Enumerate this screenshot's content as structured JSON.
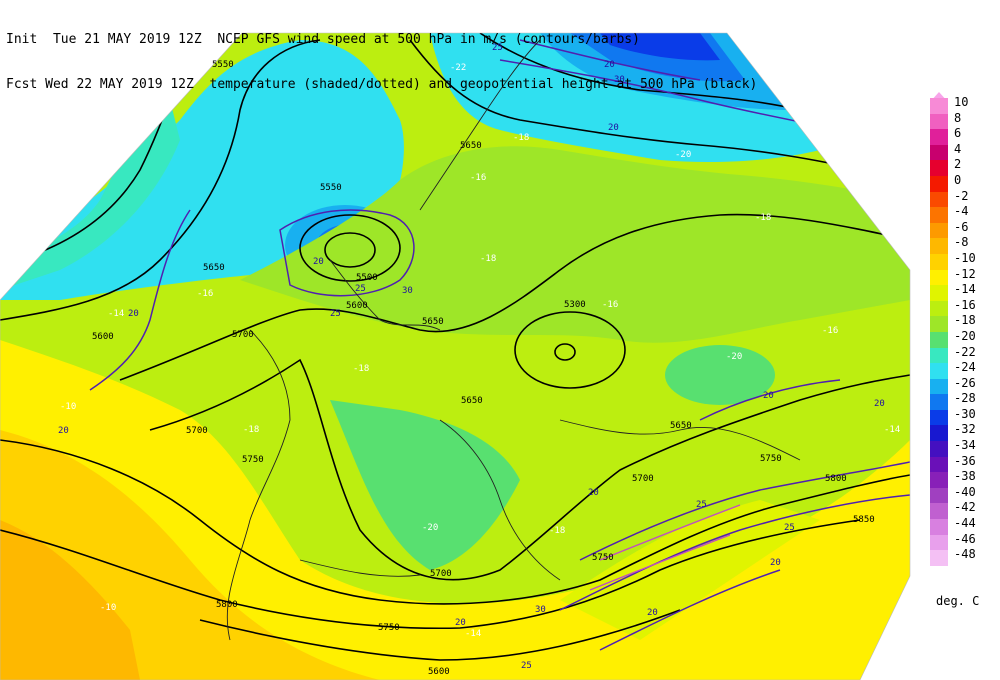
{
  "header": {
    "line1": "Init  Tue 21 MAY 2019 12Z  NCEP GFS wind speed at 500 hPa in m/s (contours/barbs)",
    "line2": "Fcst Wed 22 MAY 2019 12Z  temperature (shaded/dotted) and geopotential height at 500 hPa (black)"
  },
  "colorbar": {
    "units": "deg. C",
    "levels": [
      {
        "label": "10",
        "color": "#f78ad6"
      },
      {
        "label": "8",
        "color": "#f060c0"
      },
      {
        "label": "6",
        "color": "#e0209a"
      },
      {
        "label": "4",
        "color": "#c8006e"
      },
      {
        "label": "2",
        "color": "#e6002e"
      },
      {
        "label": "0",
        "color": "#f41a00"
      },
      {
        "label": "-2",
        "color": "#fa4a00"
      },
      {
        "label": "-4",
        "color": "#fc7400"
      },
      {
        "label": "-6",
        "color": "#fd9a00"
      },
      {
        "label": "-8",
        "color": "#feb800"
      },
      {
        "label": "-10",
        "color": "#ffd200"
      },
      {
        "label": "-12",
        "color": "#fff000"
      },
      {
        "label": "-14",
        "color": "#e0f400"
      },
      {
        "label": "-16",
        "color": "#bcee10"
      },
      {
        "label": "-18",
        "color": "#9ee628"
      },
      {
        "label": "-20",
        "color": "#58e070"
      },
      {
        "label": "-22",
        "color": "#38e8c0"
      },
      {
        "label": "-24",
        "color": "#30e0f0"
      },
      {
        "label": "-26",
        "color": "#18b0f0"
      },
      {
        "label": "-28",
        "color": "#1078f0"
      },
      {
        "label": "-30",
        "color": "#0a3ce8"
      },
      {
        "label": "-32",
        "color": "#1818d0"
      },
      {
        "label": "-34",
        "color": "#4410c0"
      },
      {
        "label": "-36",
        "color": "#6a10b8"
      },
      {
        "label": "-38",
        "color": "#8820b8"
      },
      {
        "label": "-40",
        "color": "#a040c0"
      },
      {
        "label": "-42",
        "color": "#c060d0"
      },
      {
        "label": "-44",
        "color": "#d880e0"
      },
      {
        "label": "-46",
        "color": "#e8a0ec"
      },
      {
        "label": "-48",
        "color": "#f4c0f4"
      }
    ]
  },
  "map": {
    "height_labels": [
      "5550",
      "5550",
      "5600",
      "5650",
      "5650",
      "5650",
      "5700",
      "5700",
      "5750",
      "5800",
      "5500",
      "5600",
      "5300",
      "5650",
      "5650",
      "5750",
      "5700",
      "5750",
      "5800",
      "5850",
      "5700",
      "5750",
      "5600"
    ],
    "temp_labels": [
      "-22",
      "-18",
      "-16",
      "-20",
      "-18",
      "-16",
      "-14",
      "-10",
      "-18",
      "-20",
      "-16",
      "-18",
      "-20",
      "-18",
      "-14",
      "-10",
      "-16",
      "-14",
      "-18"
    ],
    "wind_labels": [
      "25",
      "20",
      "30",
      "20",
      "20",
      "20",
      "25",
      "20",
      "25",
      "25",
      "20",
      "20",
      "25",
      "30",
      "20",
      "25",
      "20",
      "20",
      "20",
      "30"
    ]
  }
}
